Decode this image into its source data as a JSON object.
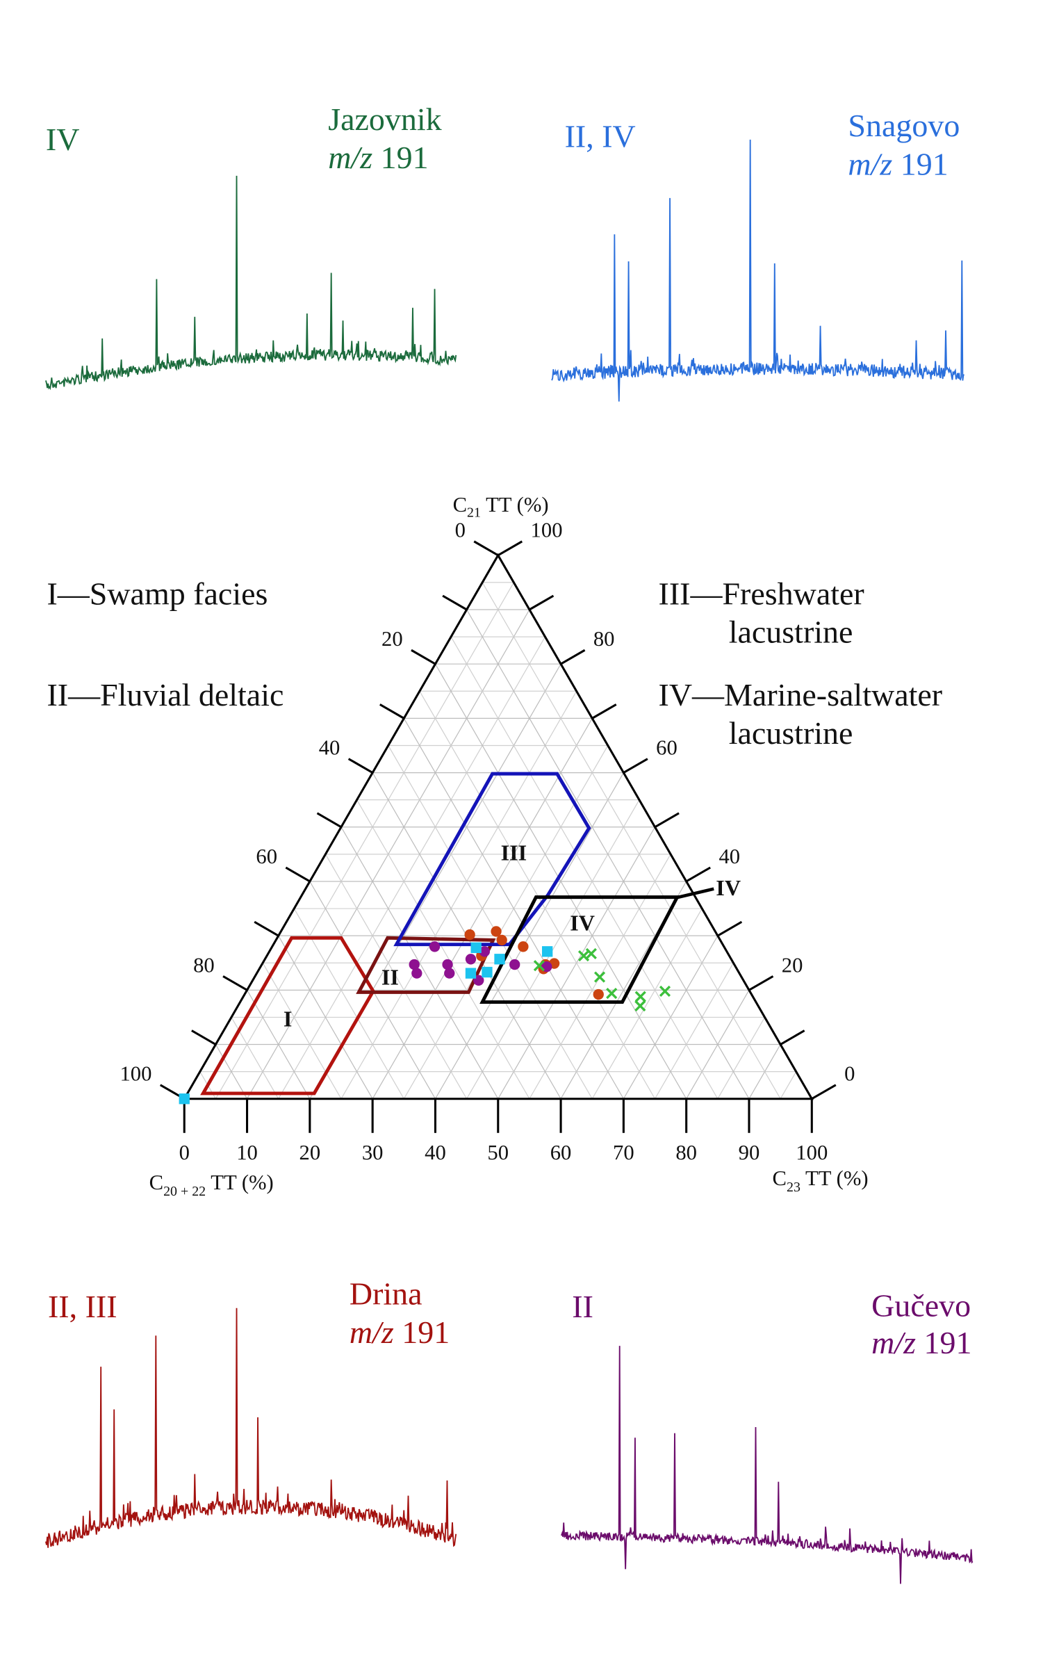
{
  "chromatograms": [
    {
      "id": "jazovnik",
      "name": "Jazovnik",
      "mz": "m/z",
      "mz_value": " 191",
      "types": "IV",
      "color": "#1b6b3c",
      "peaks": [
        [
          13.8,
          0.2
        ],
        [
          27,
          0.48
        ],
        [
          36.4,
          0.25
        ],
        [
          46.5,
          1.0
        ],
        [
          63.6,
          0.23
        ],
        [
          69.6,
          0.45
        ],
        [
          72.5,
          0.19
        ],
        [
          89.4,
          0.27
        ],
        [
          94.8,
          0.38
        ]
      ]
    },
    {
      "id": "snagovo",
      "name": "Snagovo",
      "mz": "m/z",
      "mz_value": " 191",
      "types": "II, IV",
      "color": "#2a6fdc",
      "peaks": [
        [
          15.2,
          0.6
        ],
        [
          16.3,
          -0.13
        ],
        [
          18.6,
          0.48
        ],
        [
          28.7,
          0.75
        ],
        [
          48.1,
          1.0
        ],
        [
          54,
          0.46
        ],
        [
          65.1,
          0.19
        ],
        [
          88.4,
          0.14
        ],
        [
          95.6,
          0.19
        ],
        [
          99.5,
          0.5
        ]
      ]
    },
    {
      "id": "drina",
      "name": "Drina",
      "mz": "m/z",
      "mz_value": " 191",
      "types": "II, III",
      "color": "#a3120f",
      "peaks": [
        [
          13.5,
          0.8
        ],
        [
          16.6,
          0.57
        ],
        [
          26.8,
          0.9
        ],
        [
          36.4,
          0.18
        ],
        [
          46.5,
          1.0
        ],
        [
          51.7,
          0.45
        ],
        [
          69.6,
          0.16
        ],
        [
          88.3,
          0.15
        ],
        [
          97.9,
          0.28
        ]
      ]
    },
    {
      "id": "gucevo",
      "name": "Gučevo",
      "mz": "m/z",
      "mz_value": " 191",
      "types": "II",
      "color": "#6b0c6b",
      "peaks": [
        [
          14.2,
          1.0
        ],
        [
          15.5,
          -0.17
        ],
        [
          17.9,
          0.52
        ],
        [
          27.5,
          0.55
        ],
        [
          47.2,
          0.6
        ],
        [
          52.8,
          0.32
        ],
        [
          64.2,
          0.1
        ],
        [
          70.2,
          0.1
        ],
        [
          82.4,
          -0.17
        ]
      ]
    }
  ],
  "legend": {
    "I": "I—Swamp facies",
    "II": "II—Fluvial deltaic",
    "III_1": "III—Freshwater",
    "III_2": "lacustrine",
    "IV_1": "IV—Marine-saltwater",
    "IV_2": "lacustrine"
  },
  "chart_data": {
    "type": "scatter",
    "subtype": "ternary",
    "axes": {
      "top": {
        "label_main": "C",
        "label_sub": "21",
        "label_rest": " TT (%)"
      },
      "bottom_left": {
        "label_main": "C",
        "label_sub": "20 + 22",
        "label_rest": " TT (%)"
      },
      "bottom_right": {
        "label_main": "C",
        "label_sub": "23",
        "label_rest": " TT (%)"
      },
      "left_ticks": [
        "0",
        "20",
        "40",
        "60",
        "80",
        "100"
      ],
      "right_ticks": [
        "100",
        "80",
        "60",
        "40",
        "20",
        "0"
      ],
      "bottom_ticks": [
        "0",
        "10",
        "20",
        "30",
        "40",
        "50",
        "60",
        "70",
        "80",
        "90",
        "100"
      ],
      "grid": true
    },
    "coordinate_note": "points as [C21 %, C23 %]",
    "fields": [
      {
        "label": "I",
        "color": "#b3130f",
        "polygon": [
          [
            1,
            2.5
          ],
          [
            1,
            20.2
          ],
          [
            19.8,
            20.2
          ],
          [
            29.6,
            10.2
          ],
          [
            29.6,
            2.3
          ]
        ]
      },
      {
        "label": "II",
        "color": "#7a1212",
        "polygon": [
          [
            19.6,
            18
          ],
          [
            19.6,
            35.5
          ],
          [
            29.2,
            34.6
          ],
          [
            29.6,
            17.6
          ]
        ]
      },
      {
        "label": "III",
        "color": "#1414b8",
        "polygon": [
          [
            28.4,
            19.6
          ],
          [
            28.4,
            37.6
          ],
          [
            37.5,
            39.2
          ],
          [
            49.8,
            39.6
          ],
          [
            59.8,
            29.5
          ],
          [
            59.8,
            19.2
          ]
        ]
      },
      {
        "label": "IV",
        "color": "#000000",
        "polygon": [
          [
            17.8,
            38.6
          ],
          [
            17.8,
            60.9
          ],
          [
            37.1,
            60
          ],
          [
            37.1,
            37.5
          ]
        ]
      }
    ],
    "outer_label_IV": "IV",
    "series": [
      {
        "name": "Drina",
        "marker": "circle",
        "color": "#cc4411",
        "points": [
          [
            30.2,
            30.4
          ],
          [
            30.8,
            34.3
          ],
          [
            29.2,
            36
          ],
          [
            28,
            40
          ],
          [
            24.7,
            45.2
          ],
          [
            24.9,
            46.5
          ],
          [
            23.9,
            45.3
          ],
          [
            19.2,
            56.4
          ],
          [
            26.3,
            34.2
          ]
        ]
      },
      {
        "name": "Gučevo",
        "marker": "circle",
        "color": "#8e1190",
        "points": [
          [
            24.7,
            24.3
          ],
          [
            23.1,
            25.5
          ],
          [
            28,
            25.9
          ],
          [
            24.7,
            29.6
          ],
          [
            23.1,
            30.7
          ],
          [
            25.7,
            32.8
          ],
          [
            27.1,
            34.3
          ],
          [
            24.7,
            40.3
          ],
          [
            24.3,
            45.6
          ],
          [
            21.8,
            36
          ]
        ]
      },
      {
        "name": "Snagovo",
        "marker": "square",
        "color": "#1cc3ef",
        "points": [
          [
            27.8,
            32.6
          ],
          [
            23.1,
            34.1
          ],
          [
            23.3,
            36.6
          ],
          [
            25.7,
            37.4
          ],
          [
            27.1,
            44.3
          ],
          [
            0,
            0
          ]
        ]
      },
      {
        "name": "Jazovnik",
        "marker": "cross",
        "color": "#3cbf3c",
        "points": [
          [
            24.5,
            44.3
          ],
          [
            26.3,
            50.5
          ],
          [
            26.7,
            51.5
          ],
          [
            22.4,
            55
          ],
          [
            19.4,
            58.4
          ],
          [
            18.8,
            63.3
          ],
          [
            17.1,
            64.1
          ],
          [
            19.8,
            66.7
          ]
        ]
      }
    ]
  }
}
